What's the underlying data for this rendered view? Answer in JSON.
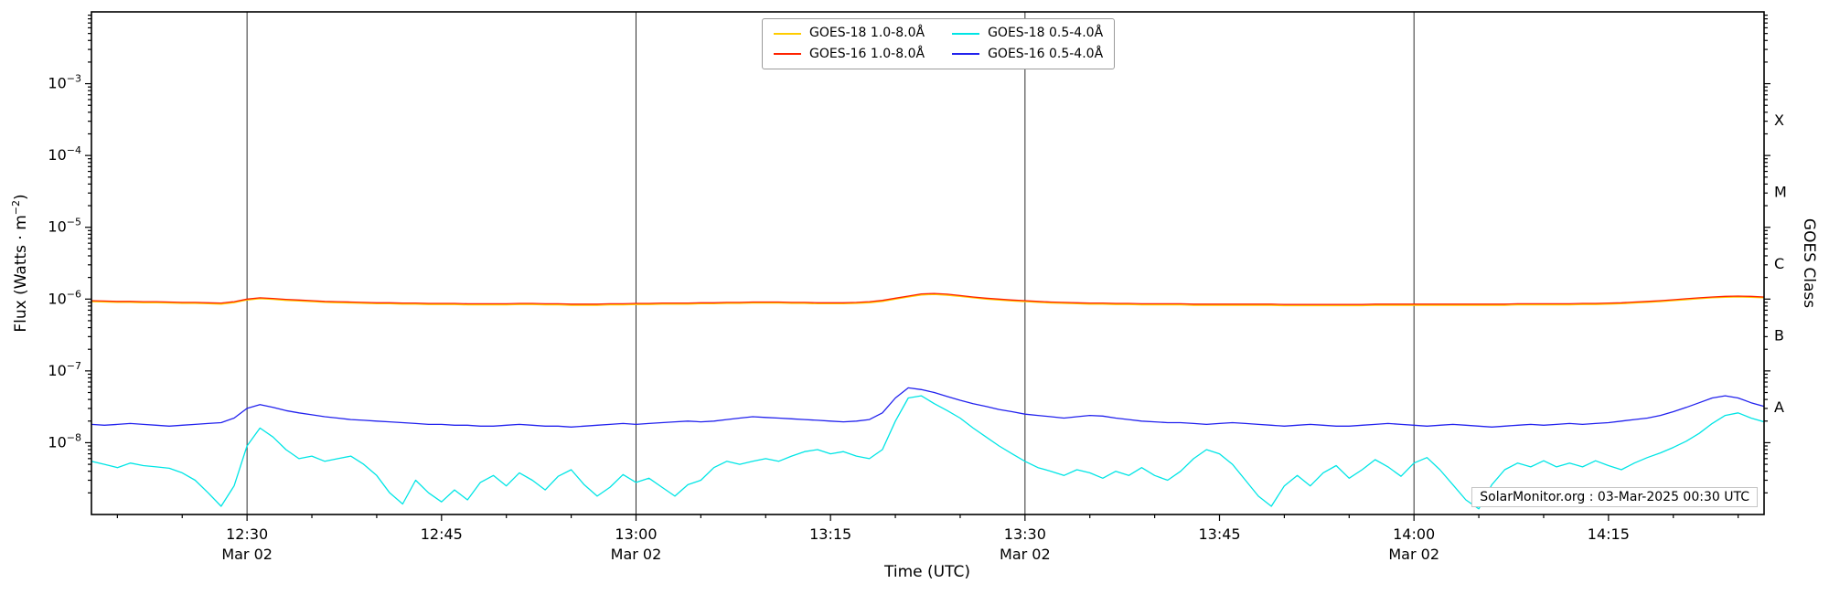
{
  "figure": {
    "background": "#ffffff"
  },
  "chart_data": {
    "type": "line",
    "title": "",
    "watermark": "SolarMonitor.org : 03-Mar-2025 00:30 UTC",
    "x_axis": {
      "label": "Time (UTC)",
      "total_minutes": 129,
      "step_minutes": 1,
      "range": [
        "12:18",
        "14:27"
      ],
      "major_ticks": [
        {
          "minutes": 12,
          "label": "12:30",
          "date": "Mar 02",
          "grid": true
        },
        {
          "minutes": 27,
          "label": "12:45"
        },
        {
          "minutes": 42,
          "label": "13:00",
          "date": "Mar 02",
          "grid": true
        },
        {
          "minutes": 57,
          "label": "13:15"
        },
        {
          "minutes": 72,
          "label": "13:30",
          "date": "Mar 02",
          "grid": true
        },
        {
          "minutes": 87,
          "label": "13:45"
        },
        {
          "minutes": 102,
          "label": "14:00",
          "date": "Mar 02",
          "grid": true
        },
        {
          "minutes": 117,
          "label": "14:15"
        }
      ]
    },
    "y_axis": {
      "scale": "log",
      "label_pre": "Flux (Watts · m",
      "label_sup": "−2",
      "label_post": ")",
      "log_min": -9,
      "log_max": -2,
      "tick_exponents": [
        -3,
        -4,
        -5,
        -6,
        -7,
        -8
      ]
    },
    "right_axis": {
      "label": "GOES Class",
      "class_labels": [
        {
          "label": "X",
          "log_center": -3.5
        },
        {
          "label": "M",
          "log_center": -4.5
        },
        {
          "label": "C",
          "log_center": -5.5
        },
        {
          "label": "B",
          "log_center": -6.5
        },
        {
          "label": "A",
          "log_center": -7.5
        }
      ]
    },
    "grid_color": "#2e2e2e",
    "series": [
      {
        "id": "goes18-long",
        "name": "GOES-18 1.0-8.0Å",
        "color": "#ffcc00",
        "scale": 1e-07,
        "values": [
          9.2,
          9.1,
          9.0,
          9.0,
          8.9,
          8.9,
          8.8,
          8.7,
          8.7,
          8.6,
          8.5,
          8.9,
          9.7,
          10.1,
          9.9,
          9.6,
          9.4,
          9.2,
          9.0,
          8.9,
          8.8,
          8.7,
          8.6,
          8.6,
          8.5,
          8.5,
          8.4,
          8.4,
          8.4,
          8.3,
          8.3,
          8.3,
          8.3,
          8.4,
          8.4,
          8.3,
          8.3,
          8.2,
          8.2,
          8.2,
          8.3,
          8.3,
          8.4,
          8.4,
          8.5,
          8.5,
          8.5,
          8.6,
          8.6,
          8.7,
          8.7,
          8.8,
          8.8,
          8.8,
          8.7,
          8.7,
          8.6,
          8.6,
          8.6,
          8.7,
          8.9,
          9.3,
          10.0,
          10.7,
          11.4,
          11.6,
          11.3,
          10.9,
          10.4,
          10.0,
          9.7,
          9.4,
          9.2,
          9.0,
          8.8,
          8.7,
          8.6,
          8.5,
          8.5,
          8.4,
          8.4,
          8.3,
          8.3,
          8.3,
          8.3,
          8.2,
          8.2,
          8.2,
          8.2,
          8.2,
          8.2,
          8.2,
          8.1,
          8.1,
          8.1,
          8.1,
          8.1,
          8.1,
          8.1,
          8.2,
          8.2,
          8.2,
          8.2,
          8.2,
          8.2,
          8.2,
          8.2,
          8.2,
          8.2,
          8.2,
          8.3,
          8.3,
          8.3,
          8.3,
          8.3,
          8.4,
          8.4,
          8.5,
          8.6,
          8.8,
          9.0,
          9.2,
          9.5,
          9.8,
          10.1,
          10.4,
          10.6,
          10.7,
          10.6,
          10.4
        ]
      },
      {
        "id": "goes16-long",
        "name": "GOES-16 1.0-8.0Å",
        "color": "#ff2200",
        "scale": 1e-07,
        "values": [
          9.5,
          9.4,
          9.3,
          9.3,
          9.2,
          9.2,
          9.1,
          9.0,
          9.0,
          8.9,
          8.8,
          9.2,
          10.0,
          10.4,
          10.2,
          9.9,
          9.7,
          9.5,
          9.3,
          9.2,
          9.1,
          9.0,
          8.9,
          8.9,
          8.8,
          8.8,
          8.7,
          8.7,
          8.7,
          8.6,
          8.6,
          8.6,
          8.6,
          8.7,
          8.7,
          8.6,
          8.6,
          8.5,
          8.5,
          8.5,
          8.6,
          8.6,
          8.7,
          8.7,
          8.8,
          8.8,
          8.8,
          8.9,
          8.9,
          9.0,
          9.0,
          9.1,
          9.1,
          9.1,
          9.0,
          9.0,
          8.9,
          8.9,
          8.9,
          9.0,
          9.2,
          9.6,
          10.3,
          11.0,
          11.8,
          12.0,
          11.7,
          11.2,
          10.7,
          10.3,
          10.0,
          9.7,
          9.5,
          9.3,
          9.1,
          9.0,
          8.9,
          8.8,
          8.8,
          8.7,
          8.7,
          8.6,
          8.6,
          8.6,
          8.6,
          8.5,
          8.5,
          8.5,
          8.5,
          8.5,
          8.5,
          8.5,
          8.4,
          8.4,
          8.4,
          8.4,
          8.4,
          8.4,
          8.4,
          8.5,
          8.5,
          8.5,
          8.5,
          8.5,
          8.5,
          8.5,
          8.5,
          8.5,
          8.5,
          8.5,
          8.6,
          8.6,
          8.6,
          8.6,
          8.6,
          8.7,
          8.7,
          8.8,
          8.9,
          9.1,
          9.3,
          9.5,
          9.8,
          10.1,
          10.4,
          10.7,
          10.9,
          11.0,
          10.9,
          10.7
        ]
      },
      {
        "id": "goes18-short",
        "name": "GOES-18 0.5-4.0Å",
        "color": "#00e5e5",
        "scale": 1e-09,
        "values": [
          5.5,
          5.0,
          4.5,
          5.2,
          4.8,
          4.6,
          4.4,
          3.8,
          3.0,
          2.0,
          1.3,
          2.5,
          9.0,
          16.0,
          12.0,
          8.0,
          6.0,
          6.5,
          5.5,
          6.0,
          6.5,
          5.0,
          3.5,
          2.0,
          1.4,
          3.0,
          2.0,
          1.5,
          2.2,
          1.6,
          2.8,
          3.5,
          2.5,
          3.8,
          3.0,
          2.2,
          3.4,
          4.2,
          2.6,
          1.8,
          2.4,
          3.6,
          2.8,
          3.2,
          2.4,
          1.8,
          2.6,
          3.0,
          4.5,
          5.5,
          5.0,
          5.5,
          6.0,
          5.5,
          6.5,
          7.5,
          8.0,
          7.0,
          7.5,
          6.5,
          6.0,
          8.0,
          20.0,
          42.0,
          45.0,
          35.0,
          28.0,
          22.0,
          16.0,
          12.0,
          9.0,
          7.0,
          5.5,
          4.5,
          4.0,
          3.5,
          4.2,
          3.8,
          3.2,
          4.0,
          3.5,
          4.5,
          3.5,
          3.0,
          4.0,
          6.0,
          8.0,
          7.0,
          5.0,
          3.0,
          1.8,
          1.3,
          2.5,
          3.5,
          2.5,
          3.8,
          4.8,
          3.2,
          4.2,
          5.8,
          4.6,
          3.4,
          5.2,
          6.2,
          4.2,
          2.6,
          1.6,
          1.2,
          2.6,
          4.2,
          5.2,
          4.6,
          5.6,
          4.6,
          5.2,
          4.6,
          5.6,
          4.8,
          4.2,
          5.2,
          6.2,
          7.2,
          8.6,
          10.5,
          13.5,
          18.5,
          24.0,
          26.0,
          22.0,
          19.5
        ]
      },
      {
        "id": "goes16-short",
        "name": "GOES-16 0.5-4.0Å",
        "color": "#2222ee",
        "scale": 1e-08,
        "values": [
          1.8,
          1.75,
          1.8,
          1.85,
          1.8,
          1.75,
          1.7,
          1.75,
          1.8,
          1.85,
          1.9,
          2.2,
          3.0,
          3.4,
          3.1,
          2.8,
          2.6,
          2.45,
          2.3,
          2.2,
          2.1,
          2.05,
          2.0,
          1.95,
          1.9,
          1.85,
          1.8,
          1.8,
          1.75,
          1.75,
          1.7,
          1.7,
          1.75,
          1.8,
          1.75,
          1.7,
          1.7,
          1.65,
          1.7,
          1.75,
          1.8,
          1.85,
          1.8,
          1.85,
          1.9,
          1.95,
          2.0,
          1.95,
          2.0,
          2.1,
          2.2,
          2.3,
          2.25,
          2.2,
          2.15,
          2.1,
          2.05,
          2.0,
          1.95,
          2.0,
          2.1,
          2.6,
          4.2,
          5.8,
          5.5,
          5.0,
          4.4,
          3.9,
          3.5,
          3.2,
          2.9,
          2.7,
          2.5,
          2.4,
          2.3,
          2.2,
          2.3,
          2.4,
          2.35,
          2.2,
          2.1,
          2.0,
          1.95,
          1.9,
          1.9,
          1.85,
          1.8,
          1.85,
          1.9,
          1.85,
          1.8,
          1.75,
          1.7,
          1.75,
          1.8,
          1.75,
          1.7,
          1.7,
          1.75,
          1.8,
          1.85,
          1.8,
          1.75,
          1.7,
          1.75,
          1.8,
          1.75,
          1.7,
          1.65,
          1.7,
          1.75,
          1.8,
          1.75,
          1.8,
          1.85,
          1.8,
          1.85,
          1.9,
          2.0,
          2.1,
          2.2,
          2.4,
          2.7,
          3.1,
          3.6,
          4.2,
          4.5,
          4.2,
          3.6,
          3.2
        ]
      }
    ]
  }
}
